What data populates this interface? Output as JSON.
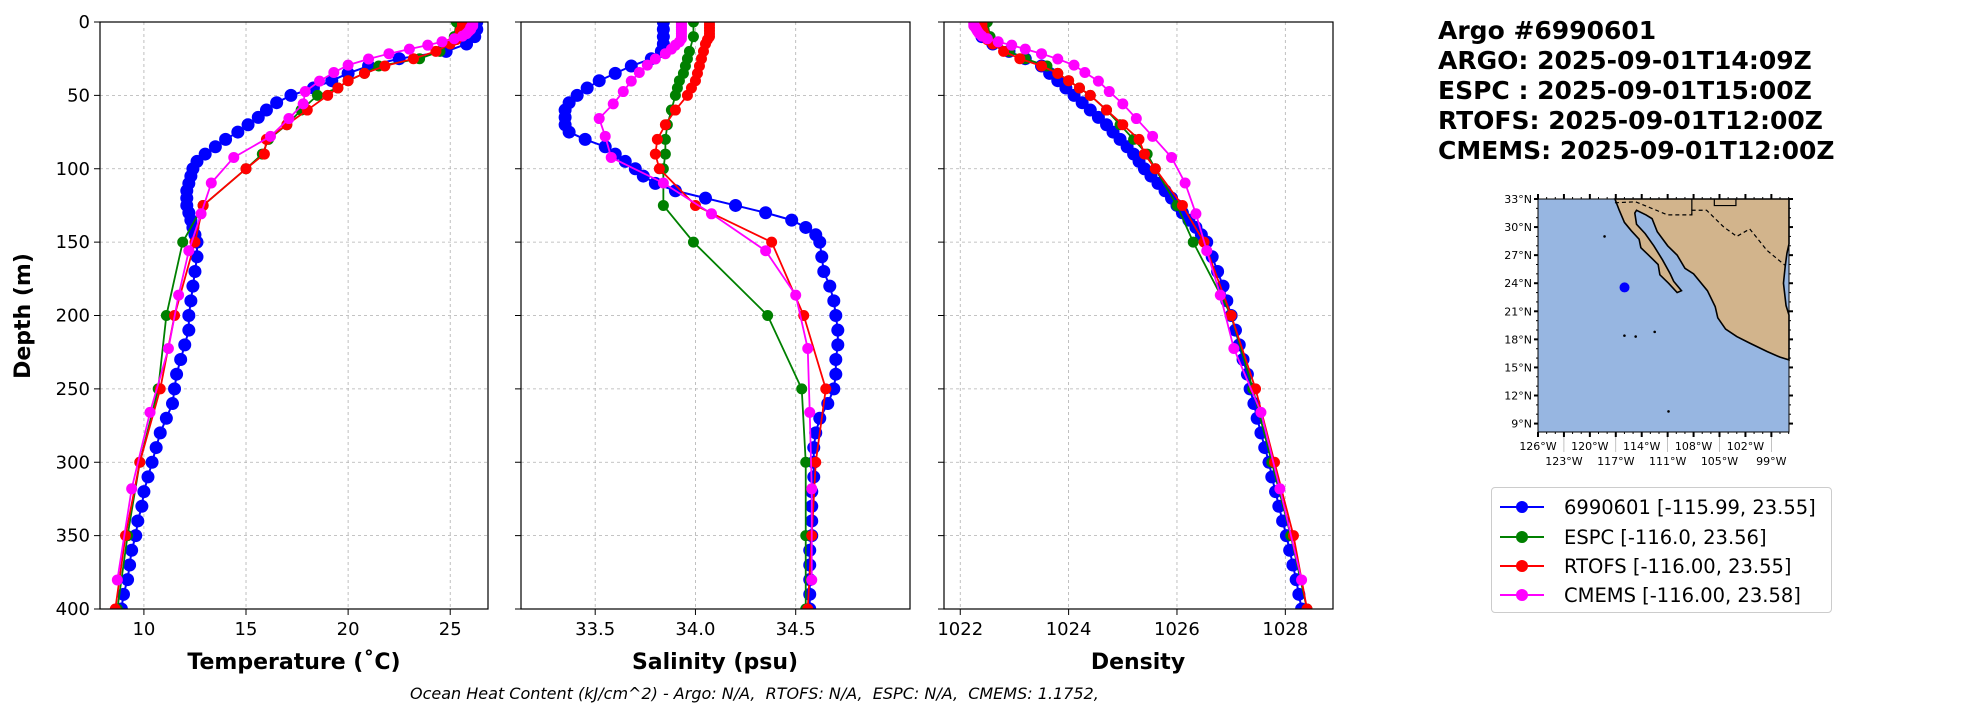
{
  "title": {
    "lines": [
      "Argo #6990601",
      "ARGO: 2025-09-01T14:09Z",
      "ESPC : 2025-09-01T15:00Z",
      "RTOFS: 2025-09-01T12:00Z",
      "CMEMS: 2025-09-01T12:00Z"
    ]
  },
  "footer": "Ocean Heat Content (kJ/cm^2) - Argo: N/A,  RTOFS: N/A,  ESPC: N/A,  CMEMS: 1.1752,",
  "legend": [
    {
      "label": "6990601 [-115.99, 23.55]",
      "color": "#0000ff"
    },
    {
      "label": "ESPC [-116.0, 23.56]",
      "color": "#008000"
    },
    {
      "label": "RTOFS [-116.00, 23.55]",
      "color": "#ff0000"
    },
    {
      "label": "CMEMS [-116.00, 23.58]",
      "color": "#ff00ff"
    }
  ],
  "map": {
    "lat_labels": [
      "9°N",
      "12°N",
      "15°N",
      "18°N",
      "21°N",
      "24°N",
      "27°N",
      "30°N",
      "33°N"
    ],
    "lat_values": [
      9,
      12,
      15,
      18,
      21,
      24,
      27,
      30,
      33
    ],
    "lon_labels": [
      "126°W",
      "123°W",
      "120°W",
      "117°W",
      "114°W",
      "111°W",
      "108°W",
      "105°W",
      "102°W",
      "99°W"
    ],
    "lon_values": [
      -126,
      -123,
      -120,
      -117,
      -114,
      -111,
      -108,
      -105,
      -102,
      -99
    ],
    "extent": {
      "lon": [
        -126,
        -96.96
      ],
      "lat": [
        8.1,
        33
      ]
    },
    "float_position": {
      "lon": -115.99,
      "lat": 23.55
    },
    "ocean_color": "#97b6e1",
    "land_color": "#d2b48c",
    "float_color": "#0000ff"
  },
  "chart_data": [
    {
      "type": "line",
      "xlabel": "Temperature (˚C)",
      "ylabel": "Depth (m)",
      "xlim": [
        7.85,
        26.85
      ],
      "ylim": [
        400,
        0
      ],
      "xticks": [
        10,
        15,
        20,
        25
      ],
      "xtick_labels": [
        "10",
        "15",
        "20",
        "25"
      ],
      "yticks": [
        0,
        50,
        100,
        150,
        200,
        250,
        300,
        350,
        400
      ],
      "ytick_labels": [
        "0",
        "50",
        "100",
        "150",
        "200",
        "250",
        "300",
        "350",
        "400"
      ],
      "grid": true,
      "series": [
        {
          "name": "6990601",
          "color": "#0000ff",
          "depth": [
            0,
            5,
            10,
            15,
            20,
            25,
            30,
            35,
            40,
            45,
            50,
            55,
            60,
            65,
            70,
            75,
            80,
            85,
            90,
            95,
            100,
            105,
            110,
            115,
            120,
            125,
            130,
            135,
            140,
            145,
            150,
            160,
            170,
            180,
            190,
            200,
            210,
            220,
            230,
            240,
            250,
            260,
            270,
            280,
            290,
            300,
            310,
            320,
            330,
            340,
            350,
            360,
            370,
            380,
            390,
            400
          ],
          "values": [
            26.3,
            26.3,
            26.2,
            25.8,
            24.8,
            22.5,
            21.0,
            20.0,
            19.2,
            18.3,
            17.2,
            16.5,
            16.0,
            15.6,
            15.1,
            14.6,
            14.0,
            13.5,
            13.0,
            12.6,
            12.4,
            12.3,
            12.2,
            12.1,
            12.1,
            12.1,
            12.2,
            12.3,
            12.4,
            12.5,
            12.6,
            12.6,
            12.5,
            12.4,
            12.3,
            12.2,
            12.2,
            12.0,
            11.8,
            11.6,
            11.5,
            11.4,
            11.1,
            10.8,
            10.6,
            10.4,
            10.2,
            10.0,
            9.9,
            9.7,
            9.6,
            9.4,
            9.3,
            9.2,
            9.0,
            8.9
          ]
        },
        {
          "name": "ESPC",
          "color": "#008000",
          "depth": [
            0,
            10,
            20,
            25,
            30,
            35,
            40,
            45,
            50,
            60,
            70,
            80,
            90,
            100,
            125,
            150,
            200,
            250,
            300,
            350,
            400
          ],
          "values": [
            25.3,
            25.2,
            24.5,
            23.5,
            21.5,
            20.8,
            20.0,
            19.5,
            18.5,
            17.7,
            17.0,
            16.1,
            15.8,
            15.0,
            12.9,
            11.9,
            11.1,
            10.7,
            9.8,
            9.2,
            8.7
          ]
        },
        {
          "name": "RTOFS",
          "color": "#ff0000",
          "depth": [
            0,
            2,
            4,
            6,
            8,
            10,
            12,
            15,
            20,
            25,
            30,
            35,
            40,
            45,
            50,
            60,
            70,
            80,
            90,
            100,
            125,
            150,
            200,
            250,
            300,
            350,
            400
          ],
          "values": [
            25.6,
            25.6,
            25.6,
            25.5,
            25.5,
            25.4,
            25.3,
            25.0,
            24.3,
            23.2,
            21.8,
            20.8,
            20.0,
            19.5,
            19.0,
            18.0,
            17.0,
            16.0,
            15.9,
            15.0,
            12.9,
            12.5,
            11.5,
            10.8,
            9.8,
            9.1,
            8.6
          ]
        },
        {
          "name": "CMEMS",
          "color": "#ff00ff",
          "depth": [
            0.5,
            1.5,
            2.6,
            3.8,
            5.1,
            6.4,
            7.9,
            9.6,
            11.4,
            13.5,
            15.8,
            18.5,
            21.6,
            25.2,
            29.4,
            34.4,
            40.3,
            47.4,
            55.8,
            65.8,
            77.9,
            92.3,
            109.7,
            130.7,
            155.9,
            186.1,
            222.5,
            266.0,
            318.1,
            380.2
          ],
          "values": [
            26.1,
            26.1,
            26.1,
            26.0,
            26.0,
            25.9,
            25.8,
            25.6,
            25.2,
            24.6,
            23.9,
            23.0,
            22.0,
            21.0,
            20.0,
            19.3,
            18.6,
            17.9,
            17.8,
            17.1,
            16.2,
            14.4,
            13.3,
            12.8,
            12.2,
            11.7,
            11.2,
            10.3,
            9.4,
            8.7
          ]
        }
      ]
    },
    {
      "type": "line",
      "xlabel": "Salinity (psu)",
      "ylabel": "",
      "xlim": [
        33.13,
        35.07
      ],
      "ylim": [
        400,
        0
      ],
      "xticks": [
        33.5,
        34.0,
        34.5
      ],
      "xtick_labels": [
        "33.5",
        "34.0",
        "34.5"
      ],
      "yticks": [
        0,
        50,
        100,
        150,
        200,
        250,
        300,
        350,
        400
      ],
      "grid": true,
      "series": [
        {
          "name": "6990601",
          "color": "#0000ff",
          "depth": [
            0,
            5,
            10,
            15,
            20,
            25,
            30,
            35,
            40,
            45,
            50,
            55,
            60,
            65,
            70,
            75,
            80,
            85,
            90,
            95,
            100,
            105,
            110,
            115,
            120,
            125,
            130,
            135,
            140,
            145,
            150,
            160,
            170,
            180,
            190,
            200,
            210,
            220,
            230,
            240,
            250,
            260,
            270,
            280,
            290,
            300,
            310,
            320,
            330,
            340,
            350,
            360,
            370,
            380,
            390,
            400
          ],
          "values": [
            33.84,
            33.84,
            33.84,
            33.84,
            33.83,
            33.78,
            33.68,
            33.6,
            33.52,
            33.46,
            33.41,
            33.37,
            33.35,
            33.35,
            33.35,
            33.37,
            33.45,
            33.55,
            33.6,
            33.65,
            33.7,
            33.74,
            33.8,
            33.9,
            34.05,
            34.2,
            34.35,
            34.48,
            34.55,
            34.6,
            34.62,
            34.63,
            34.64,
            34.67,
            34.69,
            34.7,
            34.71,
            34.71,
            34.7,
            34.7,
            34.69,
            34.66,
            34.62,
            34.6,
            34.59,
            34.59,
            34.59,
            34.58,
            34.58,
            34.58,
            34.58,
            34.57,
            34.57,
            34.57,
            34.57,
            34.57
          ]
        },
        {
          "name": "ESPC",
          "color": "#008000",
          "depth": [
            0,
            10,
            20,
            25,
            30,
            35,
            40,
            45,
            50,
            60,
            70,
            80,
            90,
            100,
            125,
            150,
            200,
            250,
            300,
            350,
            400
          ],
          "values": [
            33.99,
            33.99,
            33.97,
            33.96,
            33.95,
            33.94,
            33.92,
            33.91,
            33.9,
            33.88,
            33.86,
            33.85,
            33.85,
            33.84,
            33.84,
            33.99,
            34.36,
            34.53,
            34.55,
            34.55,
            34.55
          ]
        },
        {
          "name": "RTOFS",
          "color": "#ff0000",
          "depth": [
            0,
            2,
            4,
            6,
            8,
            10,
            12,
            15,
            20,
            25,
            30,
            35,
            40,
            45,
            50,
            60,
            70,
            80,
            90,
            100,
            125,
            150,
            200,
            250,
            300,
            350,
            400
          ],
          "values": [
            34.07,
            34.07,
            34.07,
            34.07,
            34.07,
            34.07,
            34.06,
            34.05,
            34.04,
            34.03,
            34.02,
            34.01,
            34.0,
            33.98,
            33.96,
            33.9,
            33.85,
            33.81,
            33.8,
            33.82,
            34.0,
            34.38,
            34.54,
            34.65,
            34.6,
            34.58,
            34.56
          ]
        },
        {
          "name": "CMEMS",
          "color": "#ff00ff",
          "depth": [
            0.5,
            1.5,
            2.6,
            3.8,
            5.1,
            6.4,
            7.9,
            9.6,
            11.4,
            13.5,
            15.8,
            18.5,
            21.6,
            25.2,
            29.4,
            34.4,
            40.3,
            47.4,
            55.8,
            65.8,
            77.9,
            92.3,
            109.7,
            130.7,
            155.9,
            186.1,
            222.5,
            266.0,
            318.1,
            380.2
          ],
          "values": [
            33.93,
            33.93,
            33.93,
            33.93,
            33.93,
            33.93,
            33.93,
            33.93,
            33.93,
            33.92,
            33.9,
            33.88,
            33.85,
            33.8,
            33.76,
            33.72,
            33.68,
            33.64,
            33.59,
            33.52,
            33.55,
            33.58,
            33.84,
            34.08,
            34.35,
            34.5,
            34.56,
            34.57,
            34.58,
            34.58
          ]
        }
      ]
    },
    {
      "type": "line",
      "xlabel": "Density",
      "ylabel": "",
      "xlim": [
        1021.7,
        1028.88
      ],
      "ylim": [
        400,
        0
      ],
      "xticks": [
        1022,
        1024,
        1026,
        1028
      ],
      "xtick_labels": [
        "1022",
        "1024",
        "1026",
        "1028"
      ],
      "yticks": [
        0,
        50,
        100,
        150,
        200,
        250,
        300,
        350,
        400
      ],
      "grid": true,
      "series": [
        {
          "name": "6990601",
          "color": "#0000ff",
          "depth": [
            0,
            5,
            10,
            15,
            20,
            25,
            30,
            35,
            40,
            45,
            50,
            55,
            60,
            65,
            70,
            75,
            80,
            85,
            90,
            95,
            100,
            105,
            110,
            115,
            120,
            125,
            130,
            135,
            140,
            145,
            150,
            160,
            170,
            180,
            190,
            200,
            210,
            220,
            230,
            240,
            250,
            260,
            270,
            280,
            290,
            300,
            310,
            320,
            330,
            340,
            350,
            360,
            370,
            380,
            390,
            400
          ],
          "values": [
            1022.35,
            1022.35,
            1022.4,
            1022.6,
            1022.9,
            1023.2,
            1023.5,
            1023.65,
            1023.8,
            1023.95,
            1024.1,
            1024.25,
            1024.4,
            1024.55,
            1024.7,
            1024.82,
            1024.95,
            1025.08,
            1025.2,
            1025.3,
            1025.4,
            1025.52,
            1025.65,
            1025.78,
            1025.9,
            1026.0,
            1026.1,
            1026.22,
            1026.35,
            1026.45,
            1026.55,
            1026.65,
            1026.75,
            1026.85,
            1026.92,
            1027.0,
            1027.08,
            1027.15,
            1027.22,
            1027.3,
            1027.35,
            1027.42,
            1027.48,
            1027.55,
            1027.62,
            1027.7,
            1027.75,
            1027.82,
            1027.88,
            1027.95,
            1028.02,
            1028.08,
            1028.14,
            1028.2,
            1028.25,
            1028.3
          ]
        },
        {
          "name": "ESPC",
          "color": "#008000",
          "depth": [
            0,
            10,
            20,
            25,
            30,
            35,
            40,
            45,
            50,
            60,
            70,
            80,
            90,
            100,
            125,
            150,
            200,
            250,
            300,
            350,
            400
          ],
          "values": [
            1022.5,
            1022.55,
            1022.9,
            1023.2,
            1023.6,
            1023.8,
            1024.0,
            1024.2,
            1024.4,
            1024.7,
            1024.95,
            1025.2,
            1025.45,
            1025.6,
            1026.0,
            1026.3,
            1027.0,
            1027.4,
            1027.75,
            1028.1,
            1028.4
          ]
        },
        {
          "name": "RTOFS",
          "color": "#ff0000",
          "depth": [
            0,
            2,
            4,
            6,
            8,
            10,
            12,
            15,
            20,
            25,
            30,
            35,
            40,
            45,
            50,
            60,
            70,
            80,
            90,
            100,
            125,
            150,
            200,
            250,
            300,
            350,
            400
          ],
          "values": [
            1022.4,
            1022.4,
            1022.4,
            1022.42,
            1022.44,
            1022.46,
            1022.5,
            1022.6,
            1022.8,
            1023.1,
            1023.5,
            1023.8,
            1024.0,
            1024.2,
            1024.4,
            1024.7,
            1025.0,
            1025.3,
            1025.4,
            1025.6,
            1026.1,
            1026.5,
            1027.0,
            1027.45,
            1027.8,
            1028.15,
            1028.4
          ]
        },
        {
          "name": "CMEMS",
          "color": "#ff00ff",
          "depth": [
            0.5,
            1.5,
            2.6,
            3.8,
            5.1,
            6.4,
            7.9,
            9.6,
            11.4,
            13.5,
            15.8,
            18.5,
            21.6,
            25.2,
            29.4,
            34.4,
            40.3,
            47.4,
            55.8,
            65.8,
            77.9,
            92.3,
            109.7,
            130.7,
            155.9,
            186.1,
            222.5,
            266.0,
            318.1,
            380.2
          ],
          "values": [
            1022.25,
            1022.25,
            1022.25,
            1022.28,
            1022.3,
            1022.32,
            1022.35,
            1022.4,
            1022.5,
            1022.7,
            1022.95,
            1023.2,
            1023.5,
            1023.8,
            1024.1,
            1024.3,
            1024.55,
            1024.75,
            1025.0,
            1025.25,
            1025.55,
            1025.9,
            1026.15,
            1026.35,
            1026.55,
            1026.8,
            1027.05,
            1027.55,
            1027.9,
            1028.3
          ]
        }
      ]
    }
  ]
}
